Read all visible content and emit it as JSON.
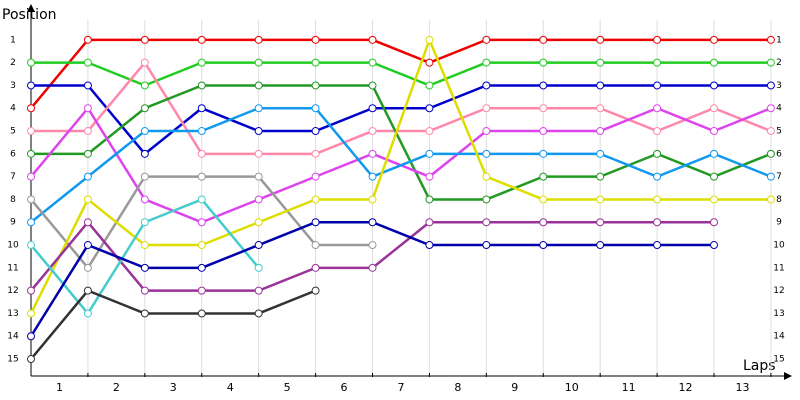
{
  "chart_data": {
    "type": "line",
    "y_label": "Position",
    "x_label": "Laps",
    "x": [
      0,
      1,
      2,
      3,
      4,
      5,
      6,
      7,
      8,
      9,
      10,
      11,
      12,
      13
    ],
    "xlim": [
      0,
      13.3
    ],
    "xticks": [
      {
        "value": 0.5,
        "label": "1"
      },
      {
        "value": 1.5,
        "label": "2"
      },
      {
        "value": 2.5,
        "label": "3"
      },
      {
        "value": 3.5,
        "label": "4"
      },
      {
        "value": 4.5,
        "label": "5"
      },
      {
        "value": 5.5,
        "label": "6"
      },
      {
        "value": 6.5,
        "label": "7"
      },
      {
        "value": 7.5,
        "label": "8"
      },
      {
        "value": 8.5,
        "label": "9"
      },
      {
        "value": 9.5,
        "label": "10"
      },
      {
        "value": 10.5,
        "label": "11"
      },
      {
        "value": 11.5,
        "label": "12"
      },
      {
        "value": 12.5,
        "label": "13"
      }
    ],
    "ylim": [
      15.7,
      0.3
    ],
    "yticks": [
      1,
      2,
      3,
      4,
      5,
      6,
      7,
      8,
      9,
      10,
      11,
      12,
      13,
      14,
      15
    ],
    "grid": true,
    "series": [
      {
        "color": "#ee0000",
        "values": [
          4,
          1,
          1,
          1,
          1,
          1,
          1,
          2,
          1,
          1,
          1,
          1,
          1,
          1
        ]
      },
      {
        "color": "#22cc22",
        "values": [
          2,
          2,
          3,
          2,
          2,
          2,
          2,
          3,
          2,
          2,
          2,
          2,
          2,
          2
        ]
      },
      {
        "color": "#0000cc",
        "values": [
          3,
          3,
          6,
          4,
          5,
          5,
          4,
          4,
          3,
          3,
          3,
          3,
          3,
          3
        ]
      },
      {
        "color": "#ff88aa",
        "values": [
          5,
          5,
          2,
          6,
          6,
          6,
          5,
          5,
          4,
          4,
          4,
          5,
          4,
          5
        ]
      },
      {
        "color": "#229922",
        "values": [
          6,
          6,
          4,
          3,
          3,
          3,
          3,
          8,
          8,
          7,
          7,
          6,
          7,
          6
        ]
      },
      {
        "color": "#dd44ee",
        "values": [
          7,
          4,
          8,
          9,
          8,
          7,
          6,
          7,
          5,
          5,
          5,
          4,
          5,
          4
        ]
      },
      {
        "color": "#1199ee",
        "values": [
          9,
          7,
          5,
          5,
          4,
          4,
          7,
          6,
          6,
          6,
          6,
          7,
          6,
          7
        ]
      },
      {
        "color": "#999999",
        "values": [
          8,
          11,
          7,
          7,
          7,
          10,
          10,
          null,
          null,
          null,
          null,
          null,
          null,
          null
        ]
      },
      {
        "color": "#dddd00",
        "values": [
          13,
          8,
          10,
          10,
          9,
          8,
          8,
          1,
          7,
          8,
          8,
          8,
          8,
          8
        ]
      },
      {
        "color": "#993399",
        "values": [
          12,
          9,
          12,
          12,
          12,
          11,
          11,
          9,
          9,
          9,
          9,
          9,
          9,
          null
        ]
      },
      {
        "color": "#44cccc",
        "values": [
          10,
          13,
          9,
          8,
          11,
          null,
          null,
          null,
          null,
          null,
          null,
          null,
          null,
          null
        ]
      },
      {
        "color": "#0000aa",
        "values": [
          14,
          10,
          11,
          11,
          10,
          9,
          9,
          10,
          10,
          10,
          10,
          10,
          10,
          null
        ]
      },
      {
        "color": "#333333",
        "values": [
          15,
          12,
          13,
          13,
          13,
          12,
          null,
          null,
          null,
          null,
          null,
          null,
          null,
          null
        ]
      }
    ]
  }
}
